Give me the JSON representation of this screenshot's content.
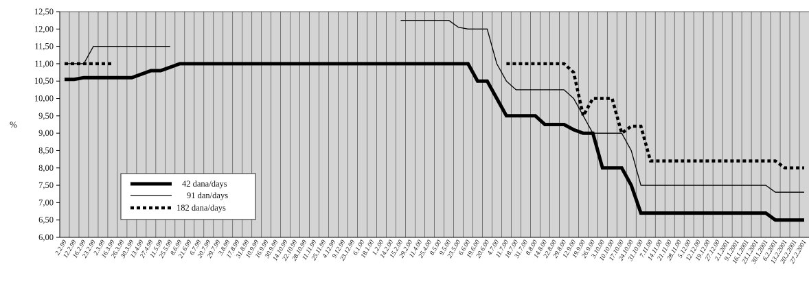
{
  "chart_data": {
    "type": "line",
    "title": "",
    "xlabel": "",
    "ylabel": "%",
    "ylim": [
      6.0,
      12.5
    ],
    "yticks": [
      "6,00",
      "6,50",
      "7,00",
      "7,50",
      "8,00",
      "8,50",
      "9,00",
      "9,50",
      "10,00",
      "10,50",
      "11,00",
      "11,50",
      "12,00",
      "12,50"
    ],
    "grid": "vertical lines at every category, horizontal line at the top",
    "legend_position": "bottom-left",
    "categories": [
      "2.2.99",
      "12.2.99",
      "16.2.99",
      "23.2.99",
      "2.3.99",
      "16.3.99",
      "26.3.99",
      "30.3.99",
      "13.4.99",
      "27.4.99",
      "11.5.99",
      "25.5.99",
      "8.6.99",
      "21.6.99",
      "6.7.99",
      "20.7.99",
      "29.7.99",
      "3.8.99",
      "17.8.99",
      "31.8.99",
      "10.9.99",
      "16.9.99",
      "30.9.99",
      "14.10.99",
      "22.10.99",
      "28.10.99",
      "11.11.99",
      "25.11.99",
      "4.12.99",
      "9.12.99",
      "23.12.99",
      "6.1.00",
      "18.1.00",
      "1.2.00",
      "14.2.00",
      "15.2.00",
      "29.2.00",
      "11.4.00",
      "25.4.00",
      "8.5.00",
      "9.5.00",
      "23.5.00",
      "6.6.00",
      "19.6.00",
      "20.6.00",
      "4.7.00",
      "11.7.00",
      "18.7.00",
      "31.7.00",
      "8.8.00",
      "14.8.00",
      "22.8.00",
      "29.8.00",
      "12.9.00",
      "19.9.00",
      "26.9.00",
      "3.10.00",
      "10.10.00",
      "17.10.00",
      "24.10.00",
      "31.10.00",
      "7.11.00",
      "14.11.00",
      "21.11.00",
      "28.11.00",
      "5.12.00",
      "12.12.00",
      "19.12.00",
      "27.12.00",
      "2.1.2001",
      "9.1.2001",
      "16.1.2001",
      "23.1.2001",
      "30.1.2001",
      "6.2.2001",
      "13.2.2001",
      "20.2.2001",
      "27.2.2001"
    ],
    "series": [
      {
        "name": "42 dana/days",
        "style": "thick",
        "values": [
          10.55,
          10.55,
          10.6,
          10.6,
          10.6,
          10.6,
          10.6,
          10.6,
          10.7,
          10.8,
          10.8,
          10.9,
          11.0,
          11.0,
          11.0,
          11.0,
          11.0,
          11.0,
          11.0,
          11.0,
          11.0,
          11.0,
          11.0,
          11.0,
          11.0,
          11.0,
          11.0,
          11.0,
          11.0,
          11.0,
          11.0,
          11.0,
          11.0,
          11.0,
          11.0,
          11.0,
          11.0,
          11.0,
          11.0,
          11.0,
          11.0,
          11.0,
          11.0,
          10.5,
          10.5,
          10.0,
          9.5,
          9.5,
          9.5,
          9.5,
          9.25,
          9.25,
          9.25,
          9.1,
          9.0,
          9.0,
          8.0,
          8.0,
          8.0,
          7.5,
          6.7,
          6.7,
          6.7,
          6.7,
          6.7,
          6.7,
          6.7,
          6.7,
          6.7,
          6.7,
          6.7,
          6.7,
          6.7,
          6.7,
          6.5,
          6.5,
          6.5,
          6.5
        ]
      },
      {
        "name": "91 dan/days",
        "style": "thin",
        "values": [
          11.0,
          11.0,
          11.0,
          11.5,
          11.5,
          11.5,
          11.5,
          11.5,
          11.5,
          11.5,
          11.5,
          11.5,
          null,
          null,
          null,
          null,
          null,
          null,
          null,
          null,
          null,
          null,
          null,
          null,
          null,
          null,
          null,
          null,
          null,
          null,
          null,
          null,
          null,
          null,
          null,
          12.25,
          12.25,
          12.25,
          12.25,
          12.25,
          12.25,
          12.05,
          12.0,
          12.0,
          12.0,
          11.0,
          10.5,
          10.25,
          10.25,
          10.25,
          10.25,
          10.25,
          10.25,
          10.0,
          9.5,
          9.0,
          9.0,
          9.0,
          9.0,
          8.5,
          7.5,
          7.5,
          7.5,
          7.5,
          7.5,
          7.5,
          7.5,
          7.5,
          7.5,
          7.5,
          7.5,
          7.5,
          7.5,
          7.5,
          7.3,
          7.3,
          7.3,
          7.3
        ]
      },
      {
        "name": "182 dana/days",
        "style": "dotted",
        "values": [
          11.0,
          11.0,
          11.0,
          11.0,
          11.0,
          11.0,
          null,
          null,
          null,
          null,
          null,
          null,
          null,
          null,
          null,
          null,
          null,
          null,
          null,
          null,
          null,
          null,
          null,
          null,
          null,
          null,
          null,
          null,
          null,
          null,
          null,
          null,
          null,
          null,
          null,
          null,
          null,
          null,
          null,
          null,
          null,
          null,
          null,
          null,
          null,
          null,
          11.0,
          11.0,
          11.0,
          11.0,
          11.0,
          11.0,
          11.0,
          10.75,
          9.5,
          10.0,
          10.0,
          10.0,
          9.0,
          9.2,
          9.2,
          8.2,
          8.2,
          8.2,
          8.2,
          8.2,
          8.2,
          8.2,
          8.2,
          8.2,
          8.2,
          8.2,
          8.2,
          8.2,
          8.2,
          8.0,
          8.0,
          8.0
        ]
      }
    ]
  }
}
